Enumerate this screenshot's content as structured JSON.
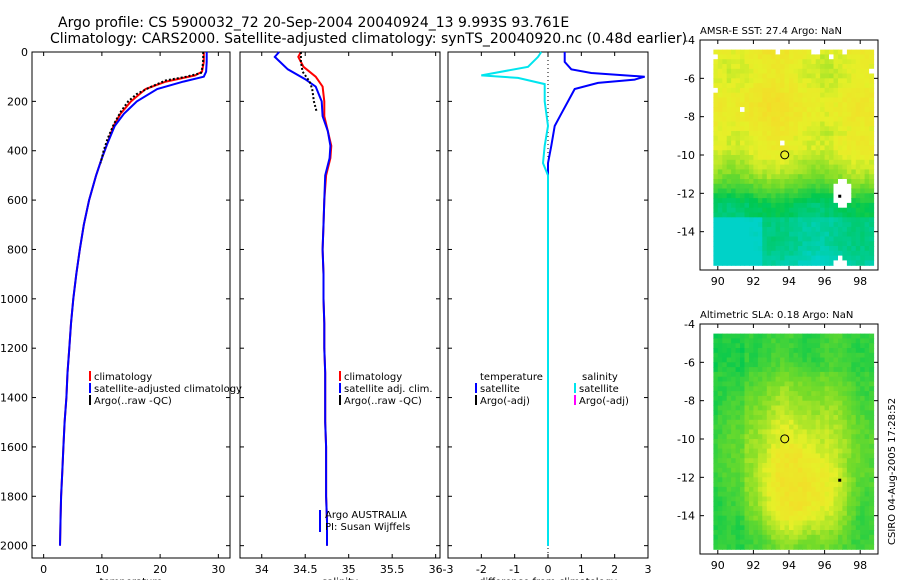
{
  "figure": {
    "title_line1": "Argo profile: CS 5900032_72 20-Sep-2004 20040924_13 9.993S 93.761E",
    "title_line2": "Climatology: CARS2000. Satellite-adjusted climatology: synTS_20040920.nc (0.48d earlier)",
    "footer_stamp": "CSIRO 04-Aug-2005 17:28:52"
  },
  "colors": {
    "climatology": "#ff0000",
    "satellite": "#0000ff",
    "argo": "#000000",
    "cyan": "#00e5ee",
    "magenta": "#ff00ff"
  },
  "chart_data": [
    {
      "type": "line",
      "panel": "temperature",
      "xlabel": "temperature",
      "ylabel": "",
      "xlim": [
        -2,
        32
      ],
      "ylim": [
        2050,
        0
      ],
      "xticks": [
        0,
        10,
        20,
        30
      ],
      "yticks": [
        0,
        200,
        400,
        600,
        800,
        1000,
        1200,
        1400,
        1600,
        1800,
        2000
      ],
      "legend": [
        "climatology",
        "satellite-adjusted climatology",
        "Argo(..raw -QC)"
      ],
      "series": [
        {
          "name": "climatology",
          "color": "#ff0000",
          "points": [
            [
              27.5,
              0
            ],
            [
              27.5,
              40
            ],
            [
              27.2,
              80
            ],
            [
              26,
              95
            ],
            [
              21,
              120
            ],
            [
              17.5,
              150
            ],
            [
              15,
              200
            ],
            [
              13.2,
              250
            ],
            [
              12,
              300
            ],
            [
              10.8,
              380
            ],
            [
              10,
              430
            ],
            [
              9,
              500
            ],
            [
              7.8,
              600
            ],
            [
              6.9,
              700
            ],
            [
              6.2,
              800
            ],
            [
              5.6,
              900
            ],
            [
              5.1,
              1000
            ],
            [
              4.7,
              1100
            ],
            [
              4.4,
              1200
            ],
            [
              4.1,
              1300
            ],
            [
              3.9,
              1400
            ],
            [
              3.6,
              1500
            ],
            [
              3.4,
              1600
            ],
            [
              3.2,
              1700
            ],
            [
              3.0,
              1800
            ],
            [
              2.9,
              1900
            ],
            [
              2.8,
              2000
            ]
          ]
        },
        {
          "name": "satellite-adjusted climatology",
          "color": "#0000ff",
          "points": [
            [
              28.0,
              0
            ],
            [
              28.0,
              40
            ],
            [
              27.9,
              80
            ],
            [
              27.5,
              100
            ],
            [
              24,
              120
            ],
            [
              19.5,
              150
            ],
            [
              16,
              200
            ],
            [
              13.8,
              250
            ],
            [
              12.2,
              300
            ],
            [
              10.8,
              380
            ],
            [
              10,
              430
            ],
            [
              9,
              500
            ],
            [
              7.8,
              600
            ],
            [
              6.9,
              700
            ],
            [
              6.2,
              800
            ],
            [
              5.6,
              900
            ],
            [
              5.1,
              1000
            ],
            [
              4.7,
              1100
            ],
            [
              4.4,
              1200
            ],
            [
              4.1,
              1300
            ],
            [
              3.9,
              1400
            ],
            [
              3.6,
              1500
            ],
            [
              3.4,
              1600
            ],
            [
              3.2,
              1700
            ],
            [
              3.0,
              1800
            ],
            [
              2.9,
              1900
            ],
            [
              2.8,
              2000
            ]
          ]
        },
        {
          "name": "Argo(..raw -QC)",
          "color": "#000000",
          "points": [
            [
              27.4,
              0
            ],
            [
              27.4,
              30
            ],
            [
              27.3,
              60
            ],
            [
              27.0,
              85
            ],
            [
              24.5,
              100
            ],
            [
              21,
              115
            ],
            [
              18.5,
              140
            ],
            [
              16,
              170
            ],
            [
              14.5,
              200
            ],
            [
              13.3,
              240
            ],
            [
              12.1,
              290
            ],
            [
              11,
              350
            ],
            [
              10.3,
              400
            ],
            [
              9.8,
              450
            ]
          ]
        }
      ]
    },
    {
      "type": "line",
      "panel": "salinity",
      "xlabel": "salinity",
      "ylabel": "",
      "xlim": [
        33.75,
        36.05
      ],
      "ylim": [
        2050,
        0
      ],
      "xticks": [
        34,
        34.5,
        35,
        35.5,
        36
      ],
      "legend": [
        "climatology",
        "satellite adj. clim.",
        "Argo(..raw -QC)"
      ],
      "annotation_line1": "Argo AUSTRALIA",
      "annotation_line2": "PI: Susan Wijffels",
      "series": [
        {
          "name": "climatology",
          "color": "#ff0000",
          "points": [
            [
              34.45,
              0
            ],
            [
              34.42,
              20
            ],
            [
              34.48,
              60
            ],
            [
              34.62,
              100
            ],
            [
              34.7,
              140
            ],
            [
              34.72,
              200
            ],
            [
              34.72,
              260
            ],
            [
              34.76,
              320
            ],
            [
              34.8,
              380
            ],
            [
              34.79,
              430
            ],
            [
              34.74,
              500
            ],
            [
              34.72,
              600
            ],
            [
              34.71,
              700
            ],
            [
              34.7,
              800
            ],
            [
              34.71,
              900
            ],
            [
              34.71,
              1000
            ],
            [
              34.72,
              1100
            ],
            [
              34.72,
              1200
            ],
            [
              34.73,
              1300
            ],
            [
              34.73,
              1400
            ],
            [
              34.73,
              1500
            ],
            [
              34.74,
              1600
            ],
            [
              34.74,
              1700
            ],
            [
              34.74,
              1800
            ],
            [
              34.75,
              1900
            ],
            [
              34.75,
              2000
            ]
          ]
        },
        {
          "name": "satellite adj. clim.",
          "color": "#0000ff",
          "points": [
            [
              34.2,
              0
            ],
            [
              34.15,
              20
            ],
            [
              34.3,
              70
            ],
            [
              34.5,
              110
            ],
            [
              34.62,
              140
            ],
            [
              34.69,
              200
            ],
            [
              34.7,
              260
            ],
            [
              34.76,
              320
            ],
            [
              34.79,
              380
            ],
            [
              34.78,
              430
            ],
            [
              34.73,
              500
            ],
            [
              34.72,
              600
            ],
            [
              34.71,
              700
            ],
            [
              34.7,
              800
            ],
            [
              34.71,
              900
            ],
            [
              34.71,
              1000
            ],
            [
              34.72,
              1100
            ],
            [
              34.72,
              1200
            ],
            [
              34.73,
              1300
            ],
            [
              34.73,
              1400
            ],
            [
              34.73,
              1500
            ],
            [
              34.74,
              1600
            ],
            [
              34.74,
              1700
            ],
            [
              34.74,
              1800
            ],
            [
              34.75,
              1900
            ],
            [
              34.75,
              2000
            ]
          ]
        },
        {
          "name": "Argo(..raw -QC)",
          "color": "#000000",
          "points": [
            [
              34.45,
              0
            ],
            [
              34.45,
              40
            ],
            [
              34.47,
              80
            ],
            [
              34.55,
              120
            ],
            [
              34.58,
              150
            ],
            [
              34.6,
              200
            ],
            [
              34.63,
              240
            ]
          ]
        }
      ]
    },
    {
      "type": "line",
      "panel": "difference",
      "xlabel": "difference from climatology",
      "ylabel": "",
      "xlim": [
        -3,
        3
      ],
      "ylim": [
        2050,
        0
      ],
      "xticks": [
        -3,
        -2,
        -1,
        0,
        1,
        2,
        3
      ],
      "legend_left": [
        "temperature",
        "satellite",
        "Argo(-adj)"
      ],
      "legend_right": [
        "salinity",
        "satellite",
        "Argo(-adj)"
      ],
      "series": [
        {
          "name": "temperature satellite",
          "color": "#0000ff",
          "points": [
            [
              0.5,
              0
            ],
            [
              0.5,
              40
            ],
            [
              0.7,
              70
            ],
            [
              1.3,
              85
            ],
            [
              2.9,
              100
            ],
            [
              2.6,
              112
            ],
            [
              1.5,
              125
            ],
            [
              0.8,
              150
            ],
            [
              0.6,
              200
            ],
            [
              0.4,
              250
            ],
            [
              0.2,
              300
            ],
            [
              0.1,
              380
            ],
            [
              0,
              450
            ],
            [
              0,
              600
            ],
            [
              0,
              800
            ],
            [
              0,
              1000
            ],
            [
              0,
              1200
            ],
            [
              0,
              1400
            ],
            [
              0,
              1600
            ],
            [
              0,
              1800
            ],
            [
              0,
              2000
            ]
          ]
        },
        {
          "name": "salinity satellite",
          "color": "#00e5ee",
          "points": [
            [
              -0.2,
              0
            ],
            [
              -0.3,
              20
            ],
            [
              -0.6,
              60
            ],
            [
              -2.0,
              95
            ],
            [
              -0.9,
              105
            ],
            [
              -0.1,
              130
            ],
            [
              -0.1,
              200
            ],
            [
              0,
              300
            ],
            [
              -0.1,
              380
            ],
            [
              -0.15,
              450
            ],
            [
              0,
              500
            ],
            [
              0,
              600
            ],
            [
              0,
              800
            ],
            [
              0,
              1000
            ],
            [
              0,
              1200
            ],
            [
              0,
              1400
            ],
            [
              0,
              1600
            ],
            [
              0,
              1800
            ],
            [
              0,
              2000
            ]
          ]
        }
      ]
    },
    {
      "type": "heatmap",
      "panel": "AMSR-E SST",
      "title": "AMSR-E SST: 27.4  Argo: NaN",
      "xlim": [
        89,
        99
      ],
      "ylim": [
        -16,
        -4
      ],
      "xticks": [
        90,
        92,
        94,
        96,
        98
      ],
      "yticks": [
        -4,
        -6,
        -8,
        -10,
        -12,
        -14
      ],
      "marker": {
        "lon": 93.761,
        "lat": -9.993
      }
    },
    {
      "type": "heatmap",
      "panel": "Altimetric SLA",
      "title": "Altimetric SLA: 0.18  Argo: NaN",
      "xlim": [
        89,
        99
      ],
      "ylim": [
        -16,
        -4
      ],
      "xticks": [
        90,
        92,
        94,
        96,
        98
      ],
      "yticks": [
        -4,
        -6,
        -8,
        -10,
        -12,
        -14
      ],
      "marker": {
        "lon": 93.761,
        "lat": -9.993
      }
    }
  ]
}
